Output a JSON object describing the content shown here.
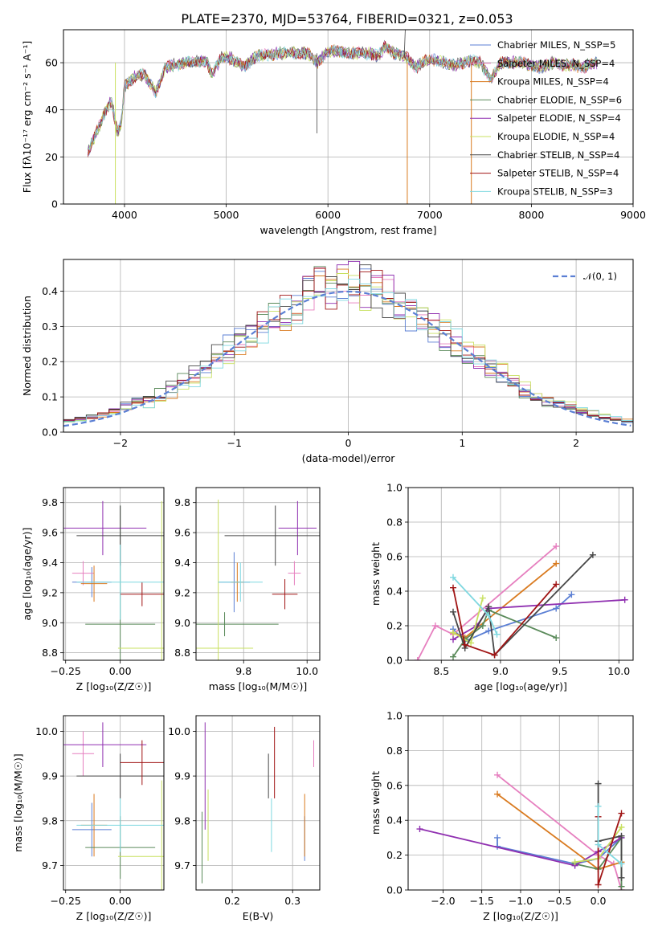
{
  "colors": [
    "#5b7fd4",
    "#e67fbf",
    "#d97a1f",
    "#5a8a5a",
    "#8f2fb0",
    "#c8e060",
    "#474747",
    "#a01414",
    "#7fd8e0"
  ],
  "chart_data": [
    {
      "type": "line",
      "title": "PLATE=2370, MJD=53764, FIBERID=0321, z=0.053",
      "xlabel": "wavelength [Angstrom, rest frame]",
      "ylabel": "Flux [fλ10⁻¹⁷ erg cm⁻² s⁻¹ A⁻¹]",
      "xlim": [
        3400,
        9000
      ],
      "ylim": [
        0,
        74
      ],
      "xticks": [
        "4000",
        "5000",
        "6000",
        "7000",
        "8000",
        "9000"
      ],
      "yticks": [
        "0",
        "20",
        "40",
        "60"
      ],
      "legend": "top-right",
      "series": [
        {
          "name": "Chabrier MILES, N_SSP=5"
        },
        {
          "name": "Salpeter MILES, N_SSP=4"
        },
        {
          "name": "Kroupa MILES, N_SSP=4"
        },
        {
          "name": "Chabrier ELODIE, N_SSP=6"
        },
        {
          "name": "Salpeter ELODIE, N_SSP=4"
        },
        {
          "name": "Kroupa ELODIE, N_SSP=4"
        },
        {
          "name": "Chabrier STELIB, N_SSP=4"
        },
        {
          "name": "Salpeter STELIB, N_SSP=4"
        },
        {
          "name": "Kroupa STELIB, N_SSP=3"
        }
      ],
      "spectrum": {
        "x": [
          3640,
          3700,
          3760,
          3820,
          3870,
          3933,
          3968,
          4000,
          4100,
          4200,
          4305,
          4400,
          4500,
          4600,
          4700,
          4800,
          4861,
          4950,
          5050,
          5175,
          5300,
          5400,
          5500,
          5600,
          5700,
          5800,
          5893,
          6000,
          6100,
          6200,
          6300,
          6400,
          6500,
          6563,
          6650,
          6750,
          6870,
          6950,
          7050,
          7150,
          7250,
          7400,
          7500,
          7600,
          7700,
          7800,
          7900,
          8000,
          8100,
          8200,
          8300,
          8400,
          8500,
          8650
        ],
        "y": [
          22,
          28,
          34,
          40,
          44,
          30,
          34,
          50,
          54,
          55,
          47,
          58,
          59,
          60,
          60,
          61,
          55,
          62,
          62,
          58,
          63,
          63,
          64,
          64,
          64,
          64,
          60,
          65,
          65,
          64,
          64,
          64,
          63,
          67,
          64,
          63,
          58,
          61,
          61,
          60,
          59,
          61,
          60,
          53,
          60,
          60,
          60,
          59,
          58,
          60,
          59,
          59,
          58,
          60
        ]
      }
    },
    {
      "type": "line",
      "xlabel": "(data-model)/error",
      "ylabel": "Normed distribution",
      "xlim": [
        -2.5,
        2.5
      ],
      "ylim": [
        0,
        0.49
      ],
      "xticks": [
        "−2",
        "−1",
        "0",
        "1",
        "2"
      ],
      "yticks": [
        "0.0",
        "0.1",
        "0.2",
        "0.3",
        "0.4"
      ],
      "legend": "top-right",
      "reference_label": "𝒩(0, 1)",
      "histogram_bin_width": 0.1
    },
    {
      "type": "scatter",
      "xlabel": "Z [log₁₀(Z/Z☉)]",
      "ylabel": "age  [log₁₀(age/yr)]",
      "xlim": [
        -0.26,
        0.2
      ],
      "ylim": [
        8.75,
        9.9
      ],
      "xticks": [
        "−0.25",
        "0.00"
      ],
      "yticks": [
        "8.8",
        "9.0",
        "9.2",
        "9.4",
        "9.6",
        "9.8"
      ],
      "points": [
        {
          "x": -0.13,
          "y": 9.27,
          "xe": 0.09,
          "ye": 0.1,
          "c": 0
        },
        {
          "x": -0.17,
          "y": 9.33,
          "xe": 0.05,
          "ye": 0.08,
          "c": 1
        },
        {
          "x": -0.12,
          "y": 9.26,
          "xe": 0.06,
          "ye": 0.12,
          "c": 2
        },
        {
          "x": 0.0,
          "y": 8.99,
          "xe": 0.16,
          "ye": 0.79,
          "c": 3
        },
        {
          "x": -0.08,
          "y": 9.63,
          "xe": 0.2,
          "ye": 0.18,
          "c": 4
        },
        {
          "x": 0.19,
          "y": 8.83,
          "xe": 0.2,
          "ye": 0.98,
          "c": 5
        },
        {
          "x": 0.0,
          "y": 9.58,
          "xe": 0.2,
          "ye": 0.2,
          "c": 6
        },
        {
          "x": 0.1,
          "y": 9.19,
          "xe": 0.1,
          "ye": 0.08,
          "c": 7
        },
        {
          "x": 0.0,
          "y": 9.27,
          "xe": 0.2,
          "ye": 0.25,
          "c": 8
        }
      ]
    },
    {
      "type": "scatter",
      "xlabel": "mass [log₁₀(M/M☉)]",
      "ylabel": "",
      "xlim": [
        9.65,
        10.04
      ],
      "ylim": [
        8.75,
        9.9
      ],
      "xticks": [
        "9.8",
        "10.0"
      ],
      "yticks": [
        "8.8",
        "9.0",
        "9.2",
        "9.4",
        "9.6",
        "9.8"
      ],
      "points": [
        {
          "x": 9.77,
          "y": 9.27,
          "xe": 0.05,
          "ye": 0.2,
          "c": 0
        },
        {
          "x": 9.96,
          "y": 9.33,
          "xe": 0.02,
          "ye": 0.08,
          "c": 1
        },
        {
          "x": 9.78,
          "y": 9.27,
          "xe": 0.02,
          "ye": 0.13,
          "c": 2
        },
        {
          "x": 9.74,
          "y": 8.99,
          "xe": 0.17,
          "ye": 0.08,
          "c": 3
        },
        {
          "x": 9.97,
          "y": 9.63,
          "xe": 0.06,
          "ye": 0.18,
          "c": 4
        },
        {
          "x": 9.72,
          "y": 8.83,
          "xe": 0.11,
          "ye": 0.99,
          "c": 5
        },
        {
          "x": 9.9,
          "y": 9.58,
          "xe": 0.16,
          "ye": 0.2,
          "c": 6
        },
        {
          "x": 9.93,
          "y": 9.19,
          "xe": 0.04,
          "ye": 0.1,
          "c": 7
        },
        {
          "x": 9.79,
          "y": 9.27,
          "xe": 0.07,
          "ye": 0.13,
          "c": 8
        }
      ]
    },
    {
      "type": "line",
      "xlabel": "age  [log₁₀(age/yr)]",
      "ylabel": "mass weight",
      "xlim": [
        8.22,
        10.12
      ],
      "ylim": [
        0,
        1.0
      ],
      "xticks": [
        "8.5",
        "9.0",
        "9.5",
        "10.0"
      ],
      "yticks": [
        "0.0",
        "0.2",
        "0.4",
        "0.6",
        "0.8",
        "1.0"
      ],
      "series": [
        {
          "c": 0,
          "points": [
            [
              8.6,
              0.18
            ],
            [
              8.7,
              0.11
            ],
            [
              8.9,
              0.17
            ],
            [
              9.47,
              0.3
            ],
            [
              9.6,
              0.38
            ]
          ]
        },
        {
          "c": 1,
          "points": [
            [
              8.3,
              0.0
            ],
            [
              8.45,
              0.2
            ],
            [
              8.6,
              0.15
            ],
            [
              9.47,
              0.66
            ]
          ]
        },
        {
          "c": 2,
          "points": [
            [
              8.6,
              0.16
            ],
            [
              8.7,
              0.13
            ],
            [
              9.47,
              0.56
            ]
          ]
        },
        {
          "c": 3,
          "points": [
            [
              8.6,
              0.02
            ],
            [
              8.7,
              0.12
            ],
            [
              8.85,
              0.2
            ],
            [
              8.9,
              0.29
            ],
            [
              9.47,
              0.13
            ]
          ]
        },
        {
          "c": 4,
          "points": [
            [
              8.6,
              0.12
            ],
            [
              8.8,
              0.2
            ],
            [
              8.9,
              0.3
            ],
            [
              10.05,
              0.35
            ]
          ]
        },
        {
          "c": 5,
          "points": [
            [
              8.6,
              0.16
            ],
            [
              8.75,
              0.1
            ],
            [
              8.85,
              0.36
            ]
          ]
        },
        {
          "c": 6,
          "points": [
            [
              8.6,
              0.28
            ],
            [
              8.7,
              0.07
            ],
            [
              8.9,
              0.31
            ],
            [
              8.95,
              0.03
            ],
            [
              9.78,
              0.61
            ]
          ]
        },
        {
          "c": 7,
          "points": [
            [
              8.6,
              0.42
            ],
            [
              8.7,
              0.09
            ],
            [
              8.95,
              0.03
            ],
            [
              9.47,
              0.44
            ]
          ]
        },
        {
          "c": 8,
          "points": [
            [
              8.6,
              0.48
            ],
            [
              8.9,
              0.26
            ],
            [
              8.97,
              0.15
            ]
          ]
        }
      ]
    },
    {
      "type": "scatter",
      "xlabel": "Z [log₁₀(Z/Z☉)]",
      "ylabel": "mass [log₁₀(M/M☉)]",
      "xlim": [
        -0.26,
        0.2
      ],
      "ylim": [
        9.645,
        10.035
      ],
      "xticks": [
        "−0.25",
        "0.00"
      ],
      "yticks": [
        "9.7",
        "9.8",
        "9.9",
        "10.0"
      ],
      "points": [
        {
          "x": -0.13,
          "y": 9.78,
          "xe": 0.09,
          "ye": 0.06,
          "c": 0
        },
        {
          "x": -0.17,
          "y": 9.95,
          "xe": 0.05,
          "ye": 0.05,
          "c": 1
        },
        {
          "x": -0.12,
          "y": 9.79,
          "xe": 0.06,
          "ye": 0.07,
          "c": 2
        },
        {
          "x": 0.0,
          "y": 9.74,
          "xe": 0.16,
          "ye": 0.07,
          "c": 3
        },
        {
          "x": -0.08,
          "y": 9.97,
          "xe": 0.2,
          "ye": 0.05,
          "c": 4
        },
        {
          "x": 0.19,
          "y": 9.72,
          "xe": 0.2,
          "ye": 0.17,
          "c": 5
        },
        {
          "x": 0.0,
          "y": 9.9,
          "xe": 0.2,
          "ye": 0.05,
          "c": 6
        },
        {
          "x": 0.1,
          "y": 9.93,
          "xe": 0.1,
          "ye": 0.05,
          "c": 7
        },
        {
          "x": 0.0,
          "y": 9.79,
          "xe": 0.2,
          "ye": 0.06,
          "c": 8
        }
      ]
    },
    {
      "type": "scatter",
      "xlabel": "E(B-V)",
      "ylabel": "",
      "xlim": [
        0.14,
        0.345
      ],
      "ylim": [
        9.645,
        10.035
      ],
      "xticks": [
        "0.2",
        "0.3"
      ],
      "yticks": [
        "9.7",
        "9.8",
        "9.9",
        "10.0"
      ],
      "points": [
        {
          "x": 0.32,
          "y": 9.76,
          "xe": 0,
          "ye": 0.05,
          "c": 0
        },
        {
          "x": 0.335,
          "y": 9.95,
          "xe": 0,
          "ye": 0.03,
          "c": 1
        },
        {
          "x": 0.32,
          "y": 9.79,
          "xe": 0,
          "ye": 0.07,
          "c": 2
        },
        {
          "x": 0.15,
          "y": 9.74,
          "xe": 0,
          "ye": 0.08,
          "c": 3
        },
        {
          "x": 0.155,
          "y": 9.9,
          "xe": 0,
          "ye": 0.12,
          "c": 4
        },
        {
          "x": 0.16,
          "y": 9.79,
          "xe": 0,
          "ye": 0.08,
          "c": 5
        },
        {
          "x": 0.26,
          "y": 9.9,
          "xe": 0,
          "ye": 0.05,
          "c": 6
        },
        {
          "x": 0.27,
          "y": 9.93,
          "xe": 0,
          "ye": 0.08,
          "c": 7
        },
        {
          "x": 0.265,
          "y": 9.79,
          "xe": 0,
          "ye": 0.06,
          "c": 8
        }
      ]
    },
    {
      "type": "line",
      "xlabel": "Z [log₁₀(Z/Z☉)]",
      "ylabel": "mass weight",
      "xlim": [
        -2.45,
        0.45
      ],
      "ylim": [
        0,
        1.0
      ],
      "xticks": [
        "−2.0",
        "−1.5",
        "−1.0",
        "−0.5",
        "0.0"
      ],
      "yticks": [
        "0.0",
        "0.2",
        "0.4",
        "0.6",
        "0.8",
        "1.0"
      ],
      "series": [
        {
          "c": 0,
          "points": [
            [
              -1.3,
              0.3
            ],
            [
              -1.3,
              0.25
            ],
            [
              -0.3,
              0.15
            ],
            [
              0.0,
              0.18
            ],
            [
              0.3,
              0.3
            ]
          ]
        },
        {
          "c": 1,
          "points": [
            [
              -1.3,
              0.66
            ],
            [
              0.0,
              0.2
            ],
            [
              0.2,
              0.15
            ],
            [
              0.3,
              0.0
            ]
          ]
        },
        {
          "c": 2,
          "points": [
            [
              -1.3,
              0.55
            ],
            [
              0.0,
              0.12
            ],
            [
              0.3,
              0.16
            ]
          ]
        },
        {
          "c": 3,
          "points": [
            [
              -0.3,
              0.15
            ],
            [
              0.0,
              0.12
            ],
            [
              0.3,
              0.3
            ],
            [
              0.3,
              0.02
            ]
          ]
        },
        {
          "c": 4,
          "points": [
            [
              -2.3,
              0.35
            ],
            [
              -0.3,
              0.14
            ],
            [
              0.0,
              0.22
            ],
            [
              0.3,
              0.3
            ]
          ]
        },
        {
          "c": 5,
          "points": [
            [
              -0.3,
              0.16
            ],
            [
              0.0,
              0.18
            ],
            [
              0.3,
              0.36
            ]
          ]
        },
        {
          "c": 6,
          "points": [
            [
              0.0,
              0.61
            ],
            [
              0.0,
              0.28
            ],
            [
              0.3,
              0.31
            ],
            [
              0.3,
              0.07
            ]
          ]
        },
        {
          "c": 7,
          "points": [
            [
              0.0,
              0.42
            ],
            [
              0.0,
              0.03
            ],
            [
              0.3,
              0.44
            ]
          ]
        },
        {
          "c": 8,
          "points": [
            [
              0.0,
              0.48
            ],
            [
              0.0,
              0.26
            ],
            [
              0.3,
              0.15
            ]
          ]
        }
      ]
    }
  ]
}
